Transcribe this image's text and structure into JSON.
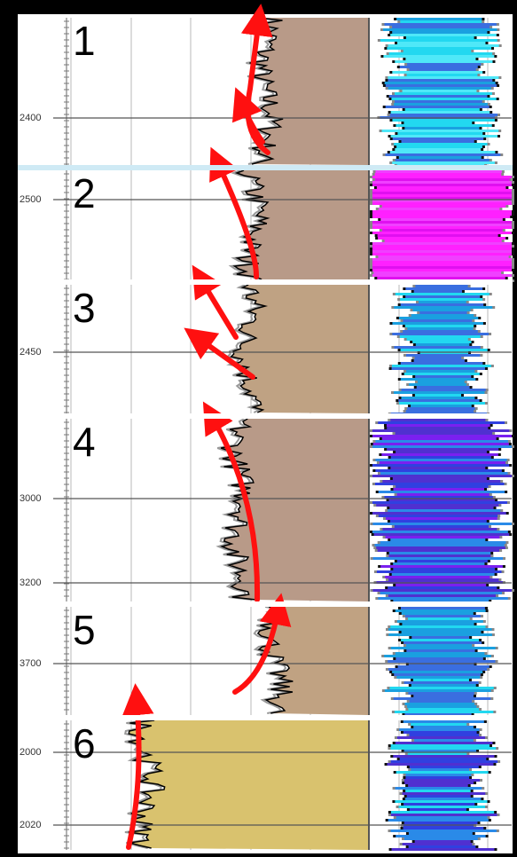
{
  "panels": [
    {
      "label": "1",
      "depths": [
        "2400"
      ]
    },
    {
      "label": "2",
      "depths": [
        "2500"
      ]
    },
    {
      "label": "3",
      "depths": [
        "2450"
      ]
    },
    {
      "label": "4",
      "depths": [
        "3000",
        "3200"
      ]
    },
    {
      "label": "5",
      "depths": [
        "3700"
      ]
    },
    {
      "label": "6",
      "depths": [
        "2000",
        "2020"
      ]
    }
  ]
}
